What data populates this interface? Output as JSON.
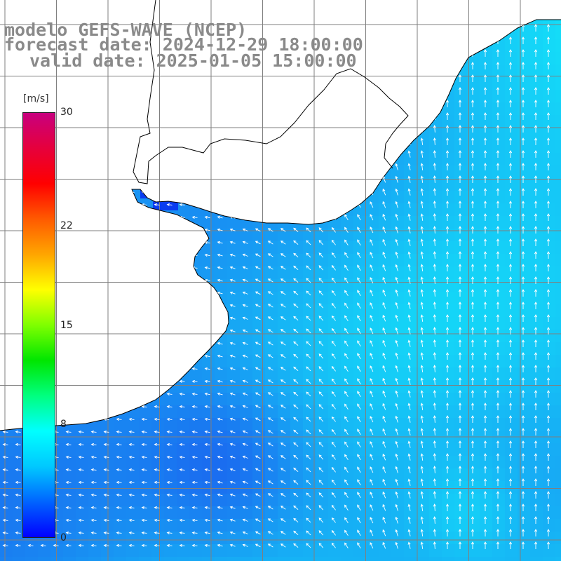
{
  "title": {
    "line1": "modelo GEFS-WAVE (NCEP)",
    "line2": "forecast date: 2024-12-29 18:00:00",
    "line3": "valid date: 2025-01-05 15:00:00"
  },
  "colorbar": {
    "unit": "[m/s]",
    "ticks": [
      {
        "value": 30,
        "label": "30"
      },
      {
        "value": 22,
        "label": "22"
      },
      {
        "value": 15,
        "label": "15"
      },
      {
        "value": 8,
        "label": "8"
      },
      {
        "value": 0,
        "label": "0"
      }
    ],
    "min": 0,
    "max": 30,
    "colors": [
      "#0000ff",
      "#0064ff",
      "#00c8ff",
      "#00ffff",
      "#00ff7f",
      "#00e600",
      "#7fff00",
      "#ffff00",
      "#ffa500",
      "#ff5a00",
      "#ff0000",
      "#e6003c",
      "#c8007f"
    ]
  },
  "map": {
    "land_color": "#ffffff",
    "field_color_low": "#1a6cf0",
    "field_color_high": "#14dcf8",
    "grid_color": "#7f7f7f",
    "arrow_color": "#ffffff"
  }
}
